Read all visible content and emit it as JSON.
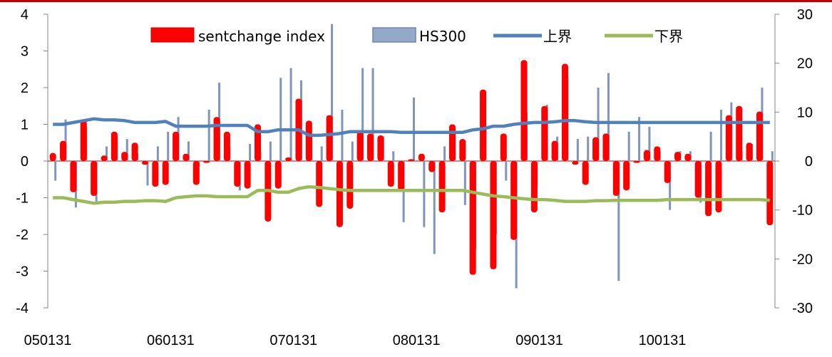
{
  "chart_data": {
    "type": "bar",
    "legend_placement": "top",
    "grid": false,
    "left_axis": {
      "ylim": [
        -4,
        4
      ],
      "ticks": [
        4,
        3,
        2,
        1,
        0,
        -1,
        -2,
        -3,
        -4
      ]
    },
    "right_axis": {
      "ylim": [
        -30,
        30
      ],
      "ticks": [
        30,
        20,
        10,
        0,
        -10,
        -20,
        -30
      ]
    },
    "x_tick_labels": [
      "050131",
      "060131",
      "070131",
      "080131",
      "090131",
      "100131"
    ],
    "x_tick_indices": [
      0,
      12,
      24,
      36,
      48,
      60
    ],
    "colors": {
      "sent": "#ff0000",
      "hs300": "#7f95b9",
      "upper": "#4f81bd",
      "lower": "#9bbb59",
      "zero_line": "#c00000"
    },
    "series": [
      {
        "name": "sentchange index",
        "axis": "left",
        "kind": "bar",
        "values": [
          0.22,
          0.55,
          -0.85,
          1.1,
          -0.95,
          0.15,
          0.8,
          0.25,
          0.5,
          -0.1,
          -0.7,
          -0.65,
          0.8,
          0.2,
          -0.65,
          -0.05,
          1.2,
          0.8,
          -0.7,
          -0.75,
          1.0,
          -1.65,
          -0.75,
          0.1,
          1.7,
          1.1,
          -1.25,
          1.25,
          -1.8,
          -1.3,
          0.8,
          0.75,
          0.7,
          -0.7,
          -0.8,
          0.05,
          0.2,
          -0.3,
          -1.4,
          1.0,
          0.6,
          -3.1,
          1.95,
          -2.95,
          0.75,
          -2.15,
          2.75,
          -1.4,
          1.5,
          0.55,
          2.65,
          -0.1,
          -0.65,
          0.65,
          0.75,
          -0.95,
          -0.8,
          -0.05,
          0.3,
          0.4,
          -0.6,
          0.25,
          0.2,
          -1.0,
          -1.5,
          -1.4,
          1.25,
          1.5,
          0.5,
          1.35,
          -1.75
        ]
      },
      {
        "name": "HS300",
        "axis": "right",
        "kind": "bar",
        "values": [
          -4,
          8.5,
          -9.5,
          7,
          -8.5,
          3,
          5,
          4.5,
          1.5,
          -5,
          3,
          6,
          9,
          4,
          -1,
          10.5,
          16,
          3,
          -6,
          3.5,
          2,
          4,
          17,
          19,
          16.5,
          5,
          3,
          28,
          10.5,
          4,
          19,
          19,
          5,
          2,
          -12.5,
          13,
          -13.5,
          -19,
          3,
          6,
          -9,
          -18,
          7,
          -15,
          -4,
          -26,
          10,
          -5,
          11.5,
          5,
          17,
          4.5,
          5,
          15,
          18,
          -24.5,
          6,
          9,
          7,
          2,
          -10,
          2,
          2,
          -8.5,
          6,
          10.5,
          12,
          2,
          3.5,
          15,
          2
        ]
      },
      {
        "name": "上界",
        "axis": "left",
        "kind": "line",
        "values": [
          1.0,
          1.0,
          1.05,
          1.1,
          1.15,
          1.12,
          1.12,
          1.1,
          1.05,
          1.05,
          1.05,
          1.08,
          0.95,
          0.95,
          0.95,
          0.95,
          0.97,
          0.97,
          0.97,
          0.97,
          0.8,
          0.8,
          0.85,
          0.85,
          0.85,
          0.7,
          0.7,
          0.72,
          0.75,
          0.8,
          0.8,
          0.8,
          0.8,
          0.8,
          0.78,
          0.78,
          0.78,
          0.78,
          0.78,
          0.78,
          0.78,
          0.85,
          0.88,
          0.95,
          0.95,
          1.0,
          1.03,
          1.05,
          1.05,
          1.07,
          1.1,
          1.1,
          1.07,
          1.05,
          1.05,
          1.05,
          1.05,
          1.05,
          1.05,
          1.05,
          1.05,
          1.05,
          1.05,
          1.05,
          1.05,
          1.05,
          1.05,
          1.05,
          1.05,
          1.05,
          1.05
        ]
      },
      {
        "name": "下界",
        "axis": "left",
        "kind": "line",
        "values": [
          -1.0,
          -1.0,
          -1.05,
          -1.1,
          -1.15,
          -1.12,
          -1.12,
          -1.1,
          -1.1,
          -1.08,
          -1.08,
          -1.1,
          -1.0,
          -0.97,
          -0.95,
          -0.95,
          -0.97,
          -0.97,
          -0.97,
          -0.97,
          -0.8,
          -0.8,
          -0.85,
          -0.85,
          -0.75,
          -0.7,
          -0.72,
          -0.75,
          -0.78,
          -0.8,
          -0.8,
          -0.8,
          -0.8,
          -0.8,
          -0.8,
          -0.8,
          -0.8,
          -0.8,
          -0.8,
          -0.8,
          -0.8,
          -0.85,
          -0.9,
          -0.95,
          -0.97,
          -1.0,
          -1.03,
          -1.05,
          -1.05,
          -1.07,
          -1.1,
          -1.1,
          -1.1,
          -1.08,
          -1.08,
          -1.07,
          -1.07,
          -1.07,
          -1.07,
          -1.07,
          -1.05,
          -1.05,
          -1.05,
          -1.05,
          -1.05,
          -1.05,
          -1.05,
          -1.05,
          -1.05,
          -1.05,
          -1.07
        ]
      }
    ]
  }
}
